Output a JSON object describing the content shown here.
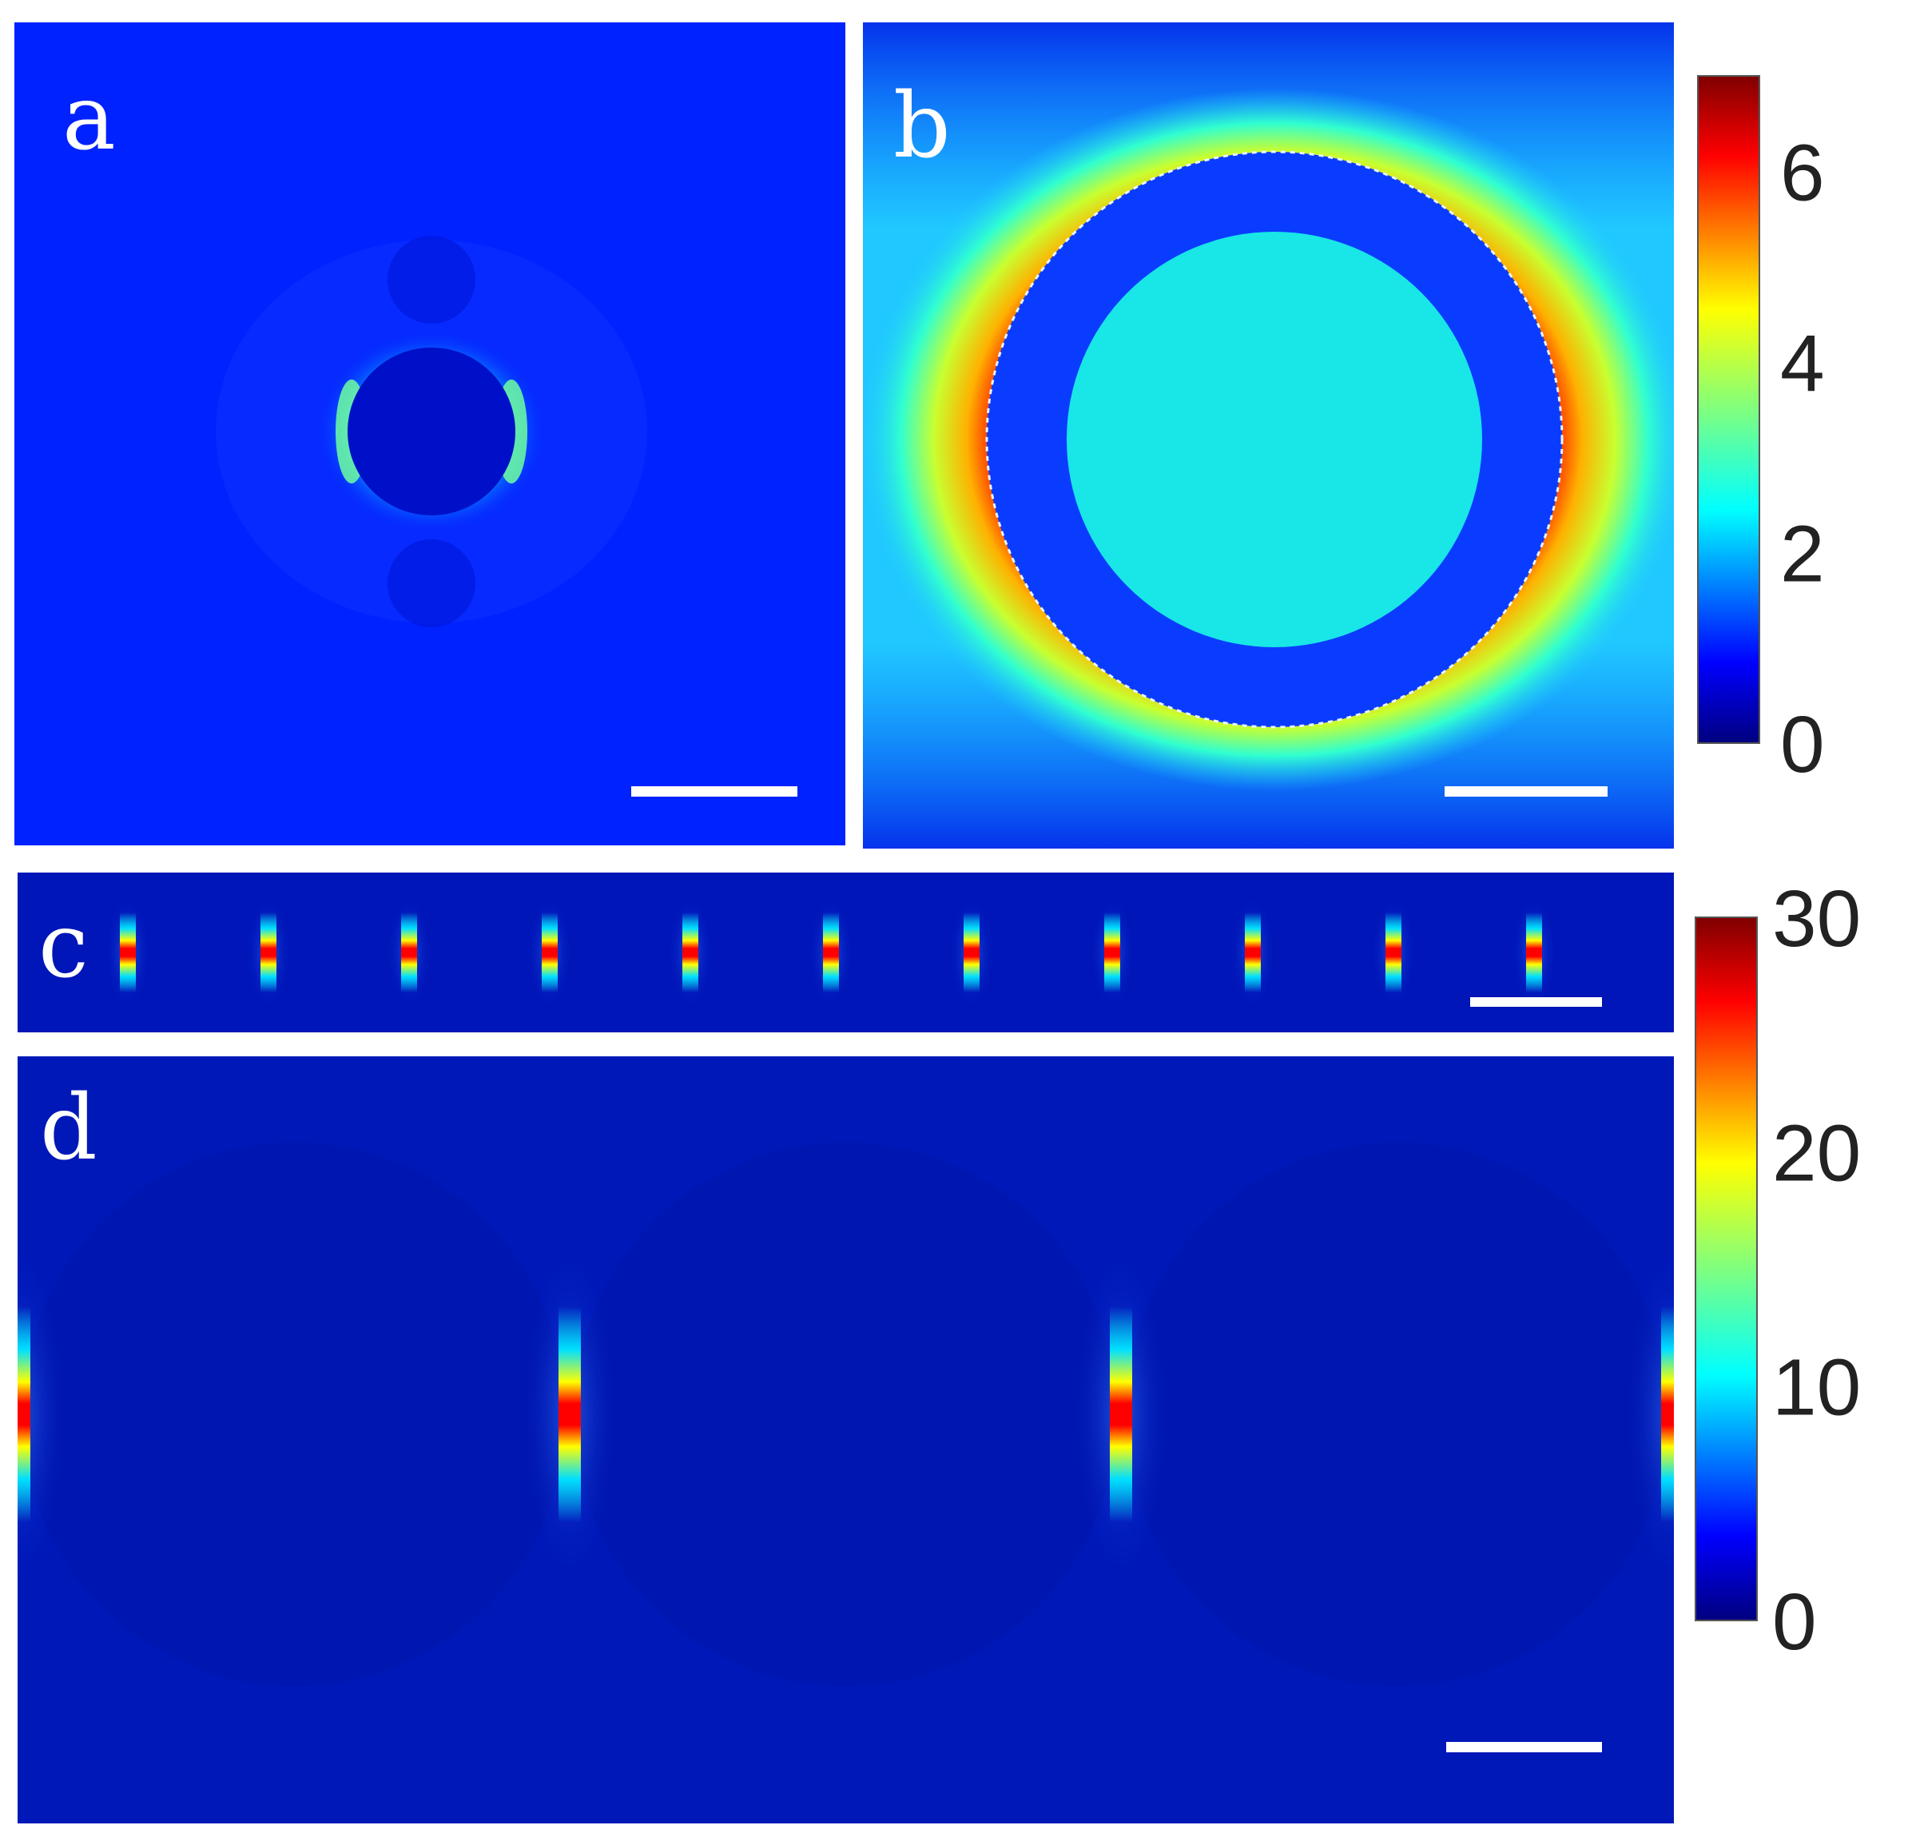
{
  "chart_data": [
    {
      "type": "heatmap",
      "panel": "a",
      "description_of_field": "single small circular particle; field near zero inside, weak enhancement at left/right edges",
      "background_value": 0.6,
      "particle_interior_value": 0.3,
      "edge_peak_value": 4.0,
      "scale_bar": true
    },
    {
      "type": "heatmap",
      "panel": "b",
      "description_of_field": "large core-shell particle; strong lobes (red) outside left and right edges, cyan core",
      "background_value": 1.8,
      "shell_value": 0.6,
      "core_value": 2.6,
      "edge_peak_value": 7.0,
      "scale_bar": true
    },
    {
      "type": "heatmap",
      "panel": "c",
      "description_of_field": "row of 11 gap hot spots in a long chain",
      "hot_spot_count": 11,
      "background_value": 0.5,
      "hot_spot_peak_value": 30,
      "scale_bar": true
    },
    {
      "type": "heatmap",
      "panel": "d",
      "description_of_field": "zoomed chain; hot spots at gaps between large particles",
      "hot_spot_count": 4,
      "background_value": 0.5,
      "hot_spot_peak_value": 30,
      "scale_bar": true
    }
  ],
  "panels": {
    "a": {
      "label": "a"
    },
    "b": {
      "label": "b"
    },
    "c": {
      "label": "c"
    },
    "d": {
      "label": "d"
    }
  },
  "colorbars": [
    {
      "name": "top",
      "colormap": "jet",
      "range": [
        0,
        7
      ],
      "ticks": [
        "6",
        "4",
        "2",
        "0"
      ],
      "tick_values": [
        6,
        4,
        2,
        0
      ]
    },
    {
      "name": "bottom",
      "colormap": "jet",
      "range": [
        0,
        30
      ],
      "ticks": [
        "30",
        "20",
        "10",
        "0"
      ],
      "tick_values": [
        30,
        20,
        10,
        0
      ]
    }
  ],
  "colors": {
    "background": "#ffffff",
    "scale_bar": "#ffffff",
    "tick_text": "#222222"
  }
}
